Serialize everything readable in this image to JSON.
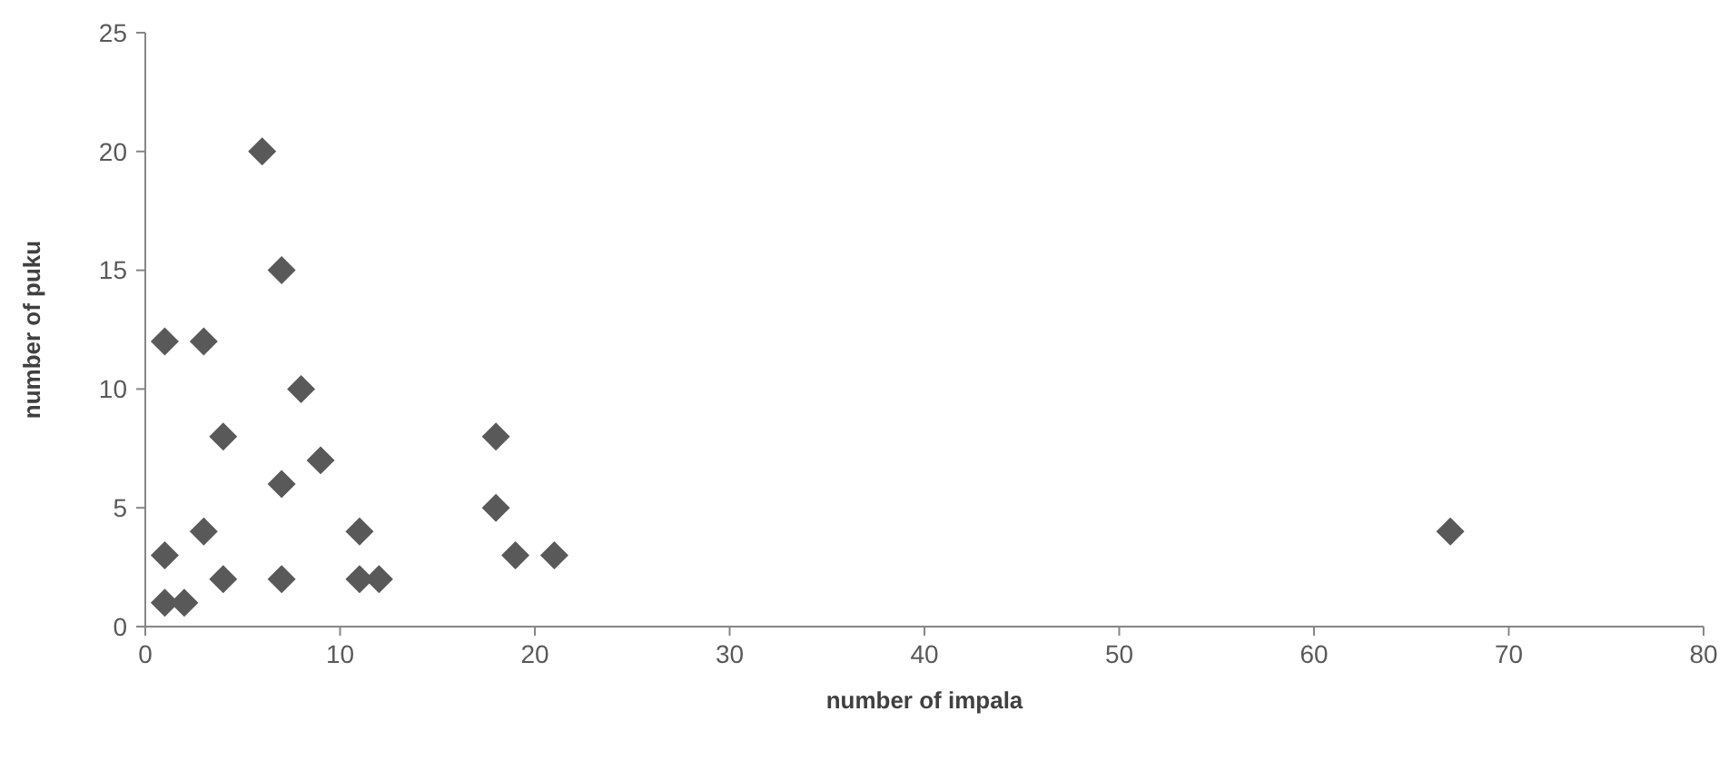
{
  "chart_data": {
    "type": "scatter",
    "xlabel": "number of impala",
    "ylabel": "number of puku",
    "x": [
      6,
      7,
      1,
      3,
      8,
      4,
      9,
      7,
      1,
      3,
      4,
      1,
      2,
      7,
      11,
      11,
      12,
      18,
      18,
      19,
      21,
      67
    ],
    "values": [
      20,
      15,
      12,
      12,
      10,
      8,
      7,
      6,
      3,
      4,
      2,
      1,
      1,
      2,
      4,
      2,
      2,
      8,
      5,
      3,
      3,
      4
    ],
    "color": "#595959",
    "marker": "diamond",
    "xlim": [
      0,
      80
    ],
    "xticks": [
      0,
      10,
      20,
      30,
      40,
      50,
      60,
      70,
      80
    ],
    "ylim": [
      0,
      25
    ],
    "yticks": [
      0,
      5,
      10,
      15,
      20,
      25
    ],
    "grid": false
  }
}
